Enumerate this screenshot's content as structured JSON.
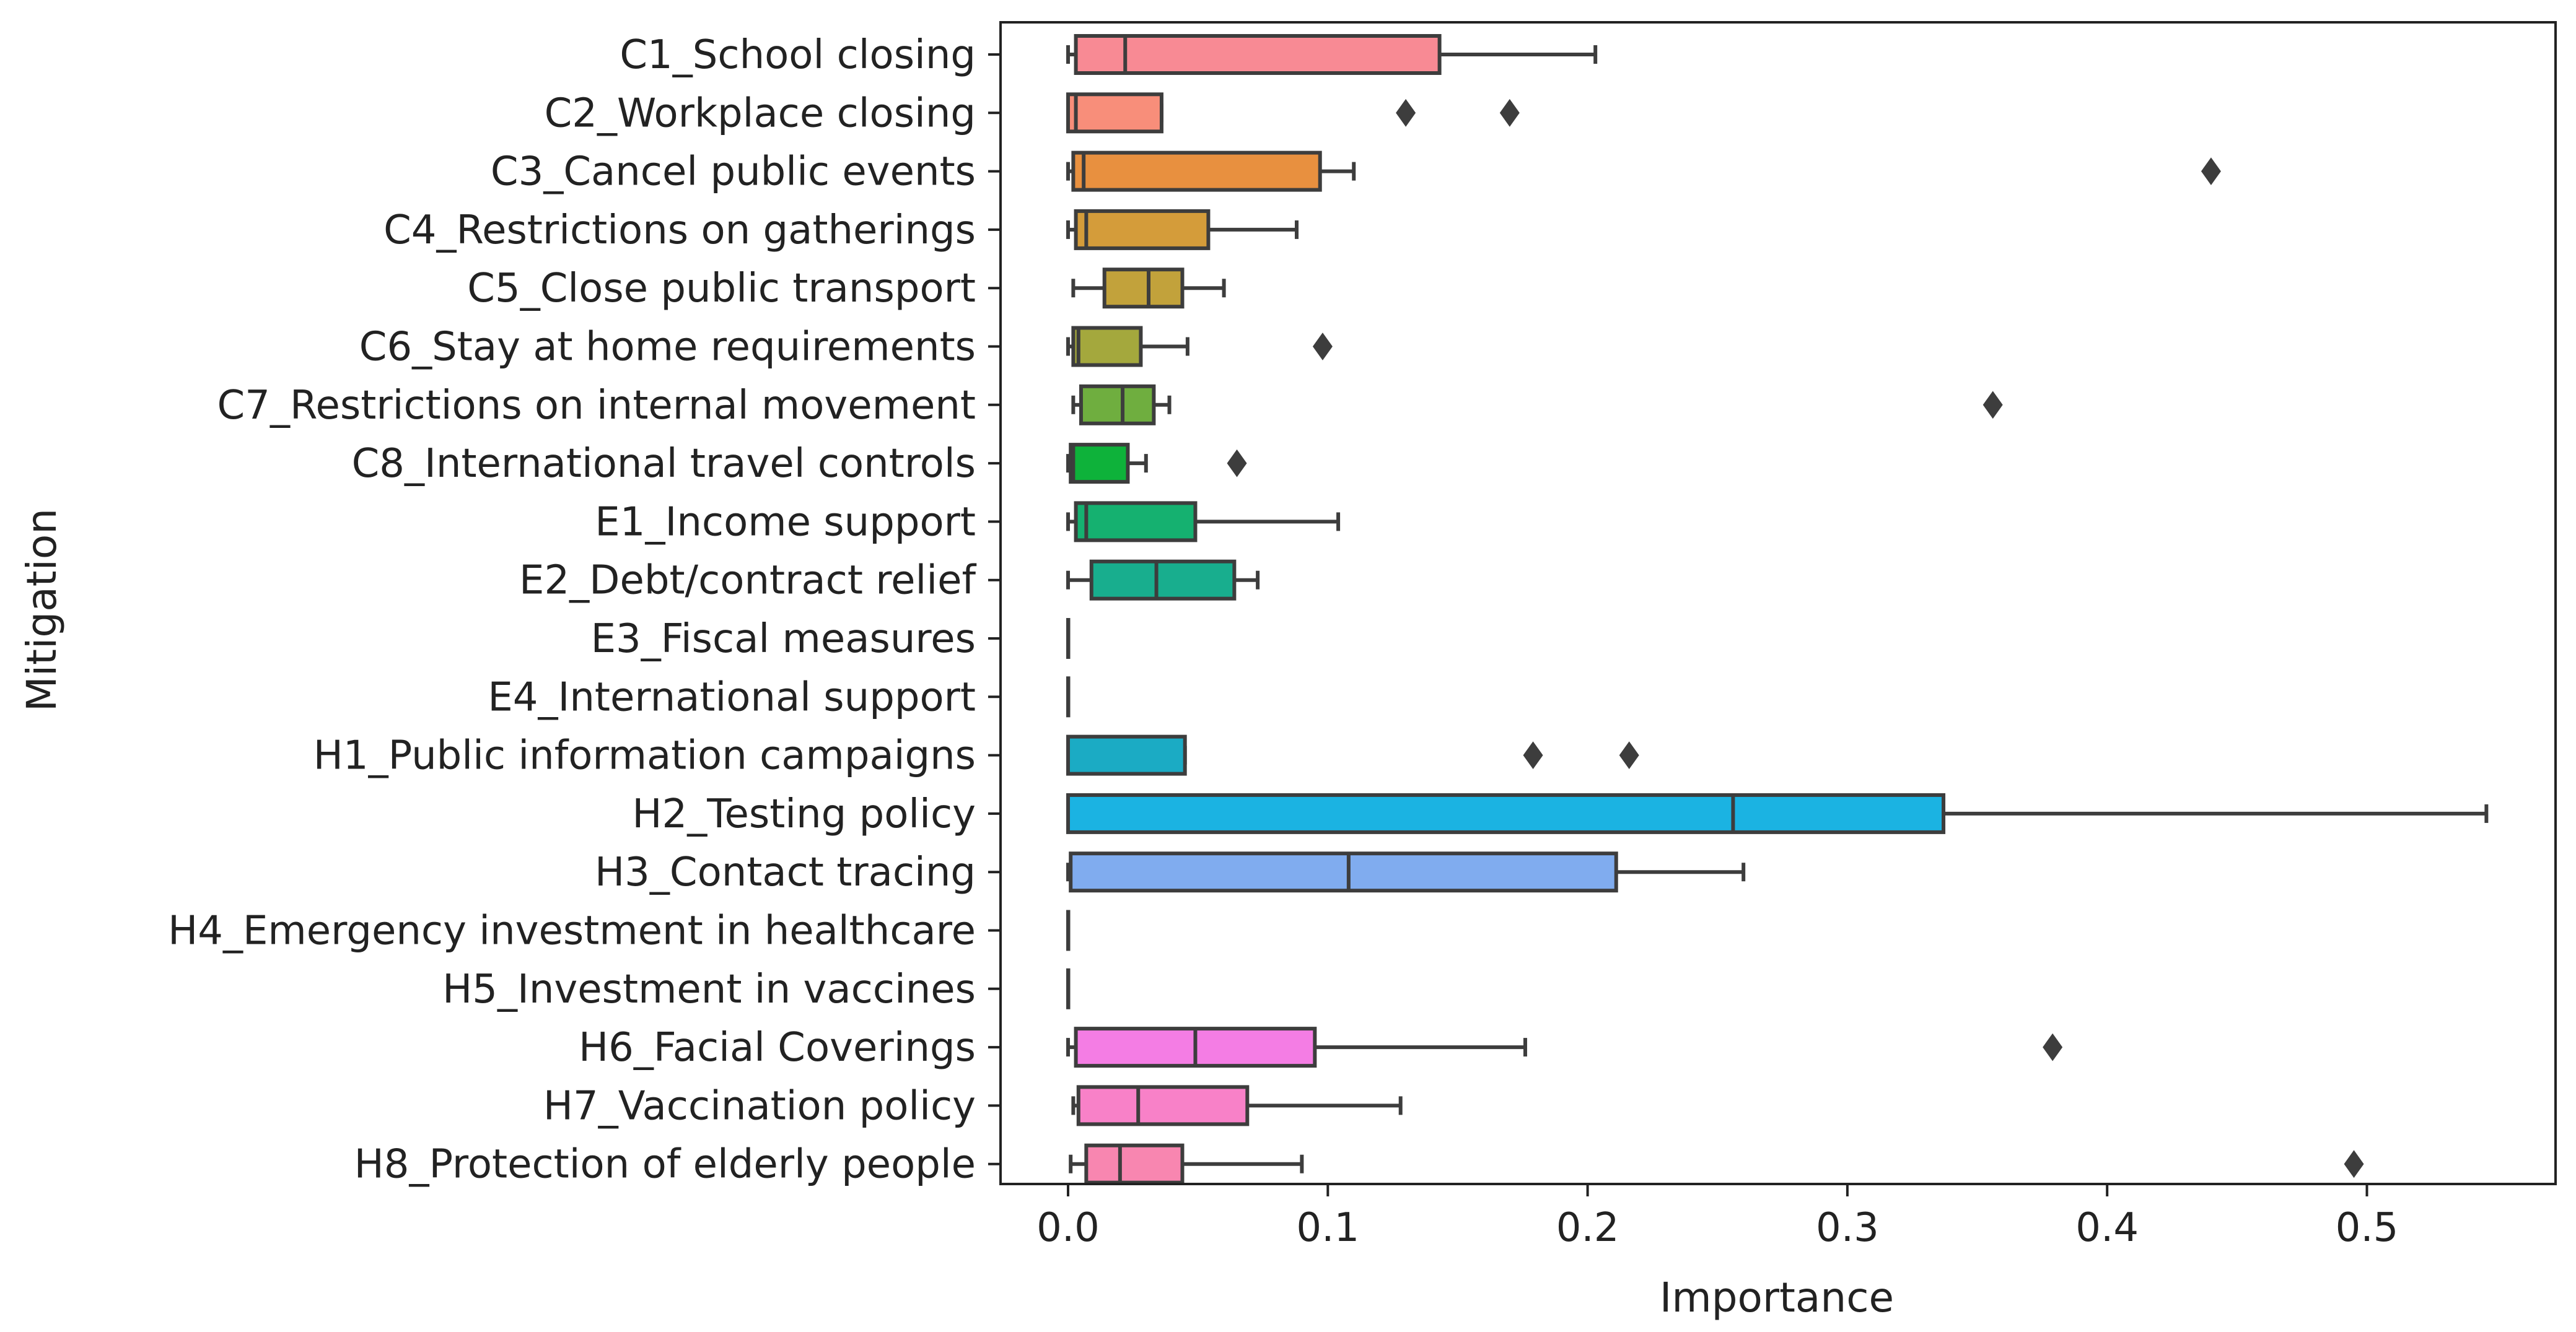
{
  "chart_data": {
    "type": "boxplot",
    "orientation": "horizontal",
    "xlabel": "Importance",
    "ylabel": "Mitigation",
    "xlim": [
      -0.027,
      0.575
    ],
    "xticks": [
      0.0,
      0.1,
      0.2,
      0.3,
      0.4,
      0.5
    ],
    "xtick_labels": [
      "0.0",
      "0.1",
      "0.2",
      "0.3",
      "0.4",
      "0.5"
    ],
    "grid": false,
    "categories": [
      {
        "label": "C1_School closing",
        "color": "#f88a94",
        "min": 0.0,
        "q1": 0.003,
        "median": 0.022,
        "q3": 0.143,
        "max": 0.203,
        "fliers": []
      },
      {
        "label": "C2_Workplace closing",
        "color": "#f88e7a",
        "min": 0.0,
        "q1": 0.0,
        "median": 0.003,
        "q3": 0.036,
        "max": 0.036,
        "fliers": [
          0.13,
          0.17
        ]
      },
      {
        "label": "C3_Cancel public events",
        "color": "#e8903f",
        "min": 0.0,
        "q1": 0.002,
        "median": 0.006,
        "q3": 0.097,
        "max": 0.11,
        "fliers": [
          0.44
        ]
      },
      {
        "label": "C4_Restrictions on gatherings",
        "color": "#d49c3a",
        "min": 0.0,
        "q1": 0.003,
        "median": 0.007,
        "q3": 0.054,
        "max": 0.088,
        "fliers": []
      },
      {
        "label": "C5_Close public transport",
        "color": "#c2a23b",
        "min": 0.002,
        "q1": 0.014,
        "median": 0.031,
        "q3": 0.044,
        "max": 0.06,
        "fliers": []
      },
      {
        "label": "C6_Stay at home requirements",
        "color": "#a4a83d",
        "min": 0.0,
        "q1": 0.002,
        "median": 0.004,
        "q3": 0.028,
        "max": 0.046,
        "fliers": [
          0.098
        ]
      },
      {
        "label": "C7_Restrictions on internal movement",
        "color": "#6fae3f",
        "min": 0.002,
        "q1": 0.005,
        "median": 0.021,
        "q3": 0.033,
        "max": 0.039,
        "fliers": [
          0.356
        ]
      },
      {
        "label": "C8_International travel controls",
        "color": "#0eb23a",
        "min": 0.0,
        "q1": 0.001,
        "median": 0.002,
        "q3": 0.023,
        "max": 0.03,
        "fliers": [
          0.065
        ]
      },
      {
        "label": "E1_Income support",
        "color": "#15b170",
        "min": 0.0,
        "q1": 0.003,
        "median": 0.007,
        "q3": 0.049,
        "max": 0.104,
        "fliers": []
      },
      {
        "label": "E2_Debt/contract relief",
        "color": "#18ae8e",
        "min": 0.0,
        "q1": 0.009,
        "median": 0.034,
        "q3": 0.064,
        "max": 0.073,
        "fliers": []
      },
      {
        "label": "E3_Fiscal measures",
        "color": "#1aaca0",
        "min": 0.0,
        "q1": 0.0,
        "median": 0.0,
        "q3": 0.0,
        "max": 0.0,
        "fliers": []
      },
      {
        "label": "E4_International support",
        "color": "#1aa9b0",
        "min": 0.0,
        "q1": 0.0,
        "median": 0.0,
        "q3": 0.0,
        "max": 0.0,
        "fliers": []
      },
      {
        "label": "H1_Public information campaigns",
        "color": "#1babc4",
        "min": 0.0,
        "q1": 0.0,
        "median": 0.0,
        "q3": 0.045,
        "max": 0.045,
        "fliers": [
          0.179,
          0.216
        ]
      },
      {
        "label": "H2_Testing policy",
        "color": "#1bb3e2",
        "min": 0.0,
        "q1": 0.0,
        "median": 0.256,
        "q3": 0.337,
        "max": 0.546,
        "fliers": []
      },
      {
        "label": "H3_Contact tracing",
        "color": "#80acef",
        "min": 0.0,
        "q1": 0.001,
        "median": 0.108,
        "q3": 0.211,
        "max": 0.26,
        "fliers": []
      },
      {
        "label": "H4_Emergency investment in healthcare",
        "color": "#b59af0",
        "min": 0.0,
        "q1": 0.0,
        "median": 0.0,
        "q3": 0.0,
        "max": 0.0,
        "fliers": []
      },
      {
        "label": "H5_Investment in vaccines",
        "color": "#e083f1",
        "min": 0.0,
        "q1": 0.0,
        "median": 0.0,
        "q3": 0.0,
        "max": 0.0,
        "fliers": []
      },
      {
        "label": "H6_Facial Coverings",
        "color": "#f47de4",
        "min": 0.0,
        "q1": 0.003,
        "median": 0.049,
        "q3": 0.095,
        "max": 0.176,
        "fliers": [
          0.379
        ]
      },
      {
        "label": "H7_Vaccination policy",
        "color": "#f881c8",
        "min": 0.002,
        "q1": 0.004,
        "median": 0.027,
        "q3": 0.069,
        "max": 0.128,
        "fliers": []
      },
      {
        "label": "H8_Protection of elderly people",
        "color": "#f886b0",
        "min": 0.001,
        "q1": 0.007,
        "median": 0.02,
        "q3": 0.044,
        "max": 0.09,
        "fliers": [
          0.495
        ]
      }
    ]
  }
}
